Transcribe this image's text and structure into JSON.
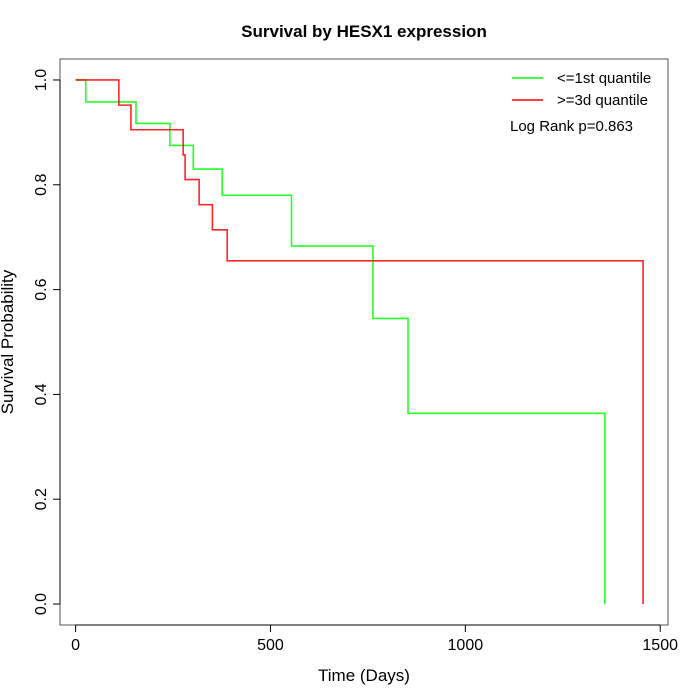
{
  "chart_data": {
    "type": "line",
    "subtype": "kaplan-meier step",
    "title": "Survival by HESX1 expression",
    "xlabel": "Time (Days)",
    "ylabel": "Survival Probability",
    "xlim": [
      -40,
      1520
    ],
    "ylim": [
      -0.04,
      1.04
    ],
    "xticks": [
      0,
      500,
      1000,
      1500
    ],
    "xtick_labels": [
      "0",
      "500",
      "1000",
      "1500"
    ],
    "yticks": [
      0.0,
      0.2,
      0.4,
      0.6,
      0.8,
      1.0
    ],
    "ytick_labels": [
      "0.0",
      "0.2",
      "0.4",
      "0.6",
      "0.8",
      "1.0"
    ],
    "grid": false,
    "legend_position": "top-right",
    "annotation": "Log Rank p=0.863",
    "series": [
      {
        "name": "<=1st quantile",
        "color": "#00ff00",
        "x": [
          0,
          26,
          155,
          242,
          302,
          376,
          554,
          763,
          853,
          1358
        ],
        "y": [
          1.0,
          0.958,
          0.917,
          0.875,
          0.83,
          0.78,
          0.683,
          0.545,
          0.364,
          0.0
        ]
      },
      {
        "name": ">=3d quantile",
        "color": "#ff0000",
        "x": [
          0,
          111,
          142,
          276,
          281,
          317,
          351,
          389,
          1456
        ],
        "y": [
          1.0,
          0.952,
          0.905,
          0.857,
          0.81,
          0.762,
          0.714,
          0.655,
          0.0
        ]
      }
    ]
  }
}
